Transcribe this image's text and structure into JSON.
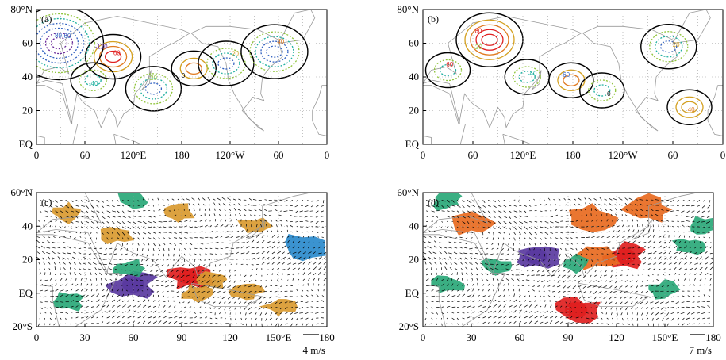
{
  "colors": {
    "zero": "#000000",
    "pos1": "#d4a020",
    "pos2": "#e07a20",
    "pos3": "#e02020",
    "neg1": "#8fc43a",
    "neg2": "#20b0a0",
    "neg3": "#3060c0",
    "neg4": "#6a2a9a",
    "land": "#999999",
    "grid": "#9a9a9a",
    "shade_pos1": "#d99a30",
    "shade_pos2": "#e86a20",
    "shade_pos3": "#e02020",
    "shade_neg1": "#2aa878",
    "shade_neg2": "#2a8acc",
    "shade_neg3": "#5a3aa0"
  },
  "chart_data": [
    {
      "panel": "(a)",
      "type": "contour",
      "x_ticks": [
        "0",
        "60",
        "120°E",
        "180",
        "120°W",
        "60",
        "0"
      ],
      "y_ticks": [
        "EQ",
        "20",
        "40",
        "60",
        "80°N"
      ],
      "contour_labels": [
        "-120",
        "-80",
        "-40",
        "-20",
        "0",
        "20",
        "40",
        "60",
        "-60"
      ],
      "centers": [
        {
          "lon": 95,
          "lat": 52,
          "sign": "pos",
          "peak": 60
        },
        {
          "lon": 28,
          "lat": 60,
          "sign": "neg",
          "peak": -120
        },
        {
          "lon": 70,
          "lat": 38,
          "sign": "neg",
          "peak": -40
        },
        {
          "lon": 145,
          "lat": 33,
          "sign": "neg",
          "peak": -60
        },
        {
          "lon": 195,
          "lat": 45,
          "sign": "pos",
          "peak": 40
        },
        {
          "lon": 235,
          "lat": 48,
          "sign": "neg",
          "peak": -60
        },
        {
          "lon": 295,
          "lat": 55,
          "sign": "neg",
          "peak": -80
        }
      ]
    },
    {
      "panel": "(b)",
      "type": "contour",
      "x_ticks": [
        "0",
        "60",
        "120°E",
        "180",
        "120°W",
        "60",
        "0"
      ],
      "y_ticks": [
        "EQ",
        "20",
        "40",
        "60",
        "80°N"
      ],
      "contour_labels": [
        "-20",
        "-40",
        "-60",
        "0",
        "20",
        "40",
        "60",
        "80"
      ],
      "centers": [
        {
          "lon": 80,
          "lat": 62,
          "sign": "pos",
          "peak": 80
        },
        {
          "lon": 125,
          "lat": 40,
          "sign": "neg",
          "peak": -40
        },
        {
          "lon": 178,
          "lat": 38,
          "sign": "pos",
          "peak": 40
        },
        {
          "lon": 215,
          "lat": 32,
          "sign": "neg",
          "peak": -40
        },
        {
          "lon": 295,
          "lat": 58,
          "sign": "neg",
          "peak": -60
        },
        {
          "lon": 320,
          "lat": 22,
          "sign": "pos",
          "peak": 20
        },
        {
          "lon": 30,
          "lat": 44,
          "sign": "neg",
          "peak": -40
        }
      ]
    },
    {
      "panel": "(c)",
      "type": "vector+shading",
      "x_ticks": [
        "0",
        "30",
        "60",
        "90",
        "120",
        "150°E",
        "180"
      ],
      "y_ticks": [
        "20°S",
        "EQ",
        "20",
        "40",
        "60°N"
      ],
      "reference_vector": "4 m/s",
      "shaded_regions": [
        {
          "lon": 60,
          "lat": 5,
          "level": -3
        },
        {
          "lon": 58,
          "lat": 15,
          "level": -1
        },
        {
          "lon": 95,
          "lat": 10,
          "level": 3
        },
        {
          "lon": 110,
          "lat": 8,
          "level": 1
        },
        {
          "lon": 100,
          "lat": 0,
          "level": 1
        },
        {
          "lon": 130,
          "lat": 1,
          "level": 1
        },
        {
          "lon": 20,
          "lat": 48,
          "level": 1
        },
        {
          "lon": 50,
          "lat": 35,
          "level": 1
        },
        {
          "lon": 88,
          "lat": 48,
          "level": 1
        },
        {
          "lon": 135,
          "lat": 40,
          "level": 1
        },
        {
          "lon": 165,
          "lat": 27,
          "level": -2
        },
        {
          "lon": 20,
          "lat": -5,
          "level": -1
        },
        {
          "lon": 150,
          "lat": -8,
          "level": 1
        },
        {
          "lon": 60,
          "lat": 57,
          "level": -1
        }
      ]
    },
    {
      "panel": "(d)",
      "type": "vector+shading",
      "x_ticks": [
        "0",
        "30",
        "60",
        "90",
        "120",
        "150°E",
        "180"
      ],
      "y_ticks": [
        "20°S",
        "EQ",
        "20",
        "40",
        "60°N"
      ],
      "reference_vector": "7 m/s",
      "shaded_regions": [
        {
          "lon": 125,
          "lat": 22,
          "level": 3
        },
        {
          "lon": 108,
          "lat": 22,
          "level": 2
        },
        {
          "lon": 95,
          "lat": -10,
          "level": 3
        },
        {
          "lon": 70,
          "lat": 22,
          "level": -3
        },
        {
          "lon": 95,
          "lat": 18,
          "level": -1
        },
        {
          "lon": 45,
          "lat": 16,
          "level": -1
        },
        {
          "lon": 15,
          "lat": 5,
          "level": -1
        },
        {
          "lon": 150,
          "lat": 2,
          "level": -1
        },
        {
          "lon": 165,
          "lat": 28,
          "level": -1
        },
        {
          "lon": 105,
          "lat": 45,
          "level": 2
        },
        {
          "lon": 30,
          "lat": 42,
          "level": 2
        },
        {
          "lon": 15,
          "lat": 55,
          "level": -1
        },
        {
          "lon": 140,
          "lat": 50,
          "level": 2
        },
        {
          "lon": 175,
          "lat": 40,
          "level": -1
        }
      ]
    }
  ]
}
